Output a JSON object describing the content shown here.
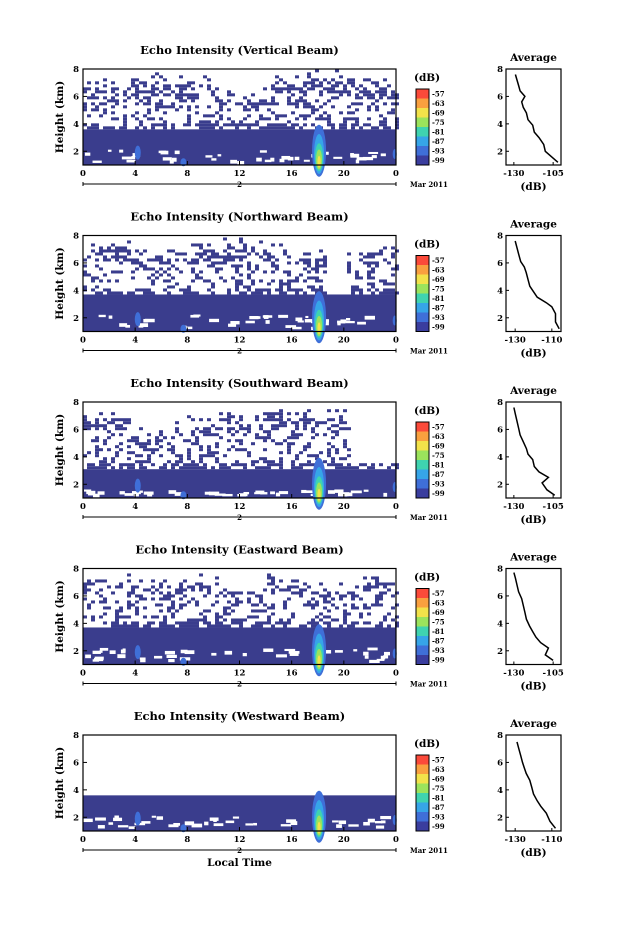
{
  "chart_data": [
    {
      "type": "heatmap",
      "title": "Echo Intensity (Vertical Beam)",
      "ylabel": "Height (km)",
      "ylim": [
        1,
        8
      ],
      "xlim": [
        0,
        24
      ],
      "x_ticks": [
        "0",
        "4",
        "8",
        "12",
        "16",
        "20",
        "0"
      ],
      "y_ticks": [
        "2",
        "4",
        "6",
        "8"
      ],
      "date_ticks": [
        "2",
        "Mar 2011"
      ],
      "colorbar": {
        "unit": "(dB)",
        "levels": [
          "-57",
          "-63",
          "-69",
          "-75",
          "-81",
          "-87",
          "-93",
          "-99"
        ]
      },
      "profile": {
        "title": "Average",
        "xlabel": "(dB)",
        "x_ticks": [
          "-130",
          "-105"
        ],
        "y_ticks": [
          "2",
          "4",
          "6",
          "8"
        ],
        "xlim": [
          -135,
          -100
        ],
        "ylim": [
          1,
          8
        ],
        "points": [
          [
            -102,
            1.2
          ],
          [
            -106,
            1.6
          ],
          [
            -110,
            2.0
          ],
          [
            -111,
            2.5
          ],
          [
            -114,
            3.0
          ],
          [
            -117,
            3.4
          ],
          [
            -118,
            3.9
          ],
          [
            -121,
            4.3
          ],
          [
            -122,
            4.8
          ],
          [
            -124,
            5.2
          ],
          [
            -125,
            5.6
          ],
          [
            -123,
            6.0
          ],
          [
            -126,
            6.4
          ],
          [
            -127,
            6.8
          ],
          [
            -128,
            7.2
          ],
          [
            -129,
            7.6
          ]
        ]
      },
      "structure": {
        "solid_top_km": 3.6,
        "noise_tops_km": [
          6.8,
          7.2,
          7.0,
          6.0,
          7.3,
          7.4,
          6.9
        ],
        "notch": null
      }
    },
    {
      "type": "heatmap",
      "title": "Echo Intensity (Northward Beam)",
      "ylabel": "Height (km)",
      "ylim": [
        1,
        8
      ],
      "xlim": [
        0,
        24
      ],
      "x_ticks": [
        "0",
        "4",
        "8",
        "12",
        "16",
        "20",
        "0"
      ],
      "y_ticks": [
        "2",
        "4",
        "6",
        "8"
      ],
      "date_ticks": [
        "2",
        "Mar 2011"
      ],
      "colorbar": {
        "unit": "(dB)",
        "levels": [
          "-57",
          "-63",
          "-69",
          "-75",
          "-81",
          "-87",
          "-93",
          "-99"
        ]
      },
      "profile": {
        "title": "Average",
        "xlabel": "(dB)",
        "x_ticks": [
          "-130",
          "-110"
        ],
        "y_ticks": [
          "2",
          "4",
          "6",
          "8"
        ],
        "xlim": [
          -135,
          -105
        ],
        "ylim": [
          1,
          8
        ],
        "points": [
          [
            -106,
            1.2
          ],
          [
            -108,
            1.7
          ],
          [
            -108,
            2.3
          ],
          [
            -110,
            2.8
          ],
          [
            -113,
            3.1
          ],
          [
            -118,
            3.5
          ],
          [
            -120,
            3.9
          ],
          [
            -122,
            4.3
          ],
          [
            -123,
            4.8
          ],
          [
            -124,
            5.3
          ],
          [
            -125,
            5.7
          ],
          [
            -127,
            6.1
          ],
          [
            -128,
            6.6
          ],
          [
            -129,
            7.1
          ],
          [
            -130,
            7.6
          ]
        ]
      },
      "structure": {
        "solid_top_km": 3.7,
        "noise_tops_km": [
          7.2,
          6.5,
          6.9,
          7.4,
          7.0,
          6.4,
          6.8
        ],
        "notch": [
          18.5,
          20.0,
          2.6
        ]
      }
    },
    {
      "type": "heatmap",
      "title": "Echo Intensity (Southward Beam)",
      "ylabel": "Height (km)",
      "ylim": [
        1,
        8
      ],
      "xlim": [
        0,
        24
      ],
      "x_ticks": [
        "0",
        "4",
        "8",
        "12",
        "16",
        "20",
        "0"
      ],
      "y_ticks": [
        "2",
        "4",
        "6",
        "8"
      ],
      "date_ticks": [
        "2",
        "Mar 2011"
      ],
      "colorbar": {
        "unit": "(dB)",
        "levels": [
          "-57",
          "-63",
          "-69",
          "-75",
          "-81",
          "-87",
          "-93",
          "-99"
        ]
      },
      "profile": {
        "title": "Average",
        "xlabel": "(dB)",
        "x_ticks": [
          "-130",
          "-105"
        ],
        "y_ticks": [
          "2",
          "4",
          "6",
          "8"
        ],
        "xlim": [
          -135,
          -100
        ],
        "ylim": [
          1,
          8
        ],
        "points": [
          [
            -104,
            1.2
          ],
          [
            -109,
            1.6
          ],
          [
            -112,
            2.1
          ],
          [
            -108,
            2.5
          ],
          [
            -114,
            2.9
          ],
          [
            -117,
            3.3
          ],
          [
            -118,
            3.8
          ],
          [
            -121,
            4.2
          ],
          [
            -122,
            4.6
          ],
          [
            -124,
            5.1
          ],
          [
            -126,
            5.6
          ],
          [
            -127,
            6.1
          ],
          [
            -128,
            6.6
          ],
          [
            -129,
            7.1
          ],
          [
            -130,
            7.6
          ]
        ]
      },
      "structure": {
        "solid_top_km": 3.1,
        "noise_tops_km": [
          7.0,
          5.6,
          6.6,
          7.1,
          7.3,
          7.0,
          6.2
        ],
        "notch": [
          20.5,
          24.0,
          3.6
        ]
      }
    },
    {
      "type": "heatmap",
      "title": "Echo Intensity (Eastward Beam)",
      "ylabel": "Height (km)",
      "ylim": [
        1,
        8
      ],
      "xlim": [
        0,
        24
      ],
      "x_ticks": [
        "0",
        "4",
        "8",
        "12",
        "16",
        "20",
        "0"
      ],
      "y_ticks": [
        "2",
        "4",
        "6",
        "8"
      ],
      "date_ticks": [
        "2",
        "Mar 2011"
      ],
      "colorbar": {
        "unit": "(dB)",
        "levels": [
          "-57",
          "-63",
          "-69",
          "-75",
          "-81",
          "-87",
          "-93",
          "-99"
        ]
      },
      "profile": {
        "title": "Average",
        "xlabel": "(dB)",
        "x_ticks": [
          "-130",
          "-105"
        ],
        "y_ticks": [
          "2",
          "4",
          "6",
          "8"
        ],
        "xlim": [
          -135,
          -100
        ],
        "ylim": [
          1,
          8
        ],
        "points": [
          [
            -105,
            1.3
          ],
          [
            -110,
            1.7
          ],
          [
            -108,
            2.2
          ],
          [
            -113,
            2.6
          ],
          [
            -116,
            3.0
          ],
          [
            -118,
            3.4
          ],
          [
            -120,
            3.8
          ],
          [
            -122,
            4.3
          ],
          [
            -123,
            4.8
          ],
          [
            -124,
            5.3
          ],
          [
            -125,
            5.8
          ],
          [
            -127,
            6.3
          ],
          [
            -128,
            6.8
          ],
          [
            -129,
            7.3
          ],
          [
            -130,
            7.7
          ]
        ]
      },
      "structure": {
        "solid_top_km": 3.7,
        "noise_tops_km": [
          7.2,
          6.8,
          7.1,
          6.5,
          7.3,
          6.4,
          7.0
        ],
        "notch": null
      }
    },
    {
      "type": "heatmap",
      "title": "Echo Intensity (Westward Beam)",
      "ylabel": "Height (km)",
      "xlabel": "Local Time",
      "ylim": [
        1,
        8
      ],
      "xlim": [
        0,
        24
      ],
      "x_ticks": [
        "0",
        "4",
        "8",
        "12",
        "16",
        "20",
        "0"
      ],
      "y_ticks": [
        "2",
        "4",
        "6",
        "8"
      ],
      "date_ticks": [
        "2",
        "Mar 2011"
      ],
      "colorbar": {
        "unit": "(dB)",
        "levels": [
          "-57",
          "-63",
          "-69",
          "-75",
          "-81",
          "-87",
          "-93",
          "-99"
        ]
      },
      "profile": {
        "title": "Average",
        "xlabel": "(dB)",
        "x_ticks": [
          "-130",
          "-110"
        ],
        "y_ticks": [
          "2",
          "4",
          "6",
          "8"
        ],
        "xlim": [
          -135,
          -105
        ],
        "ylim": [
          1,
          8
        ],
        "points": [
          [
            -108,
            1.2
          ],
          [
            -111,
            1.7
          ],
          [
            -113,
            2.3
          ],
          [
            -116,
            2.8
          ],
          [
            -118,
            3.2
          ],
          [
            -120,
            3.7
          ],
          [
            -121,
            4.2
          ],
          [
            -122,
            4.7
          ],
          [
            -124,
            5.2
          ],
          [
            -125,
            5.6
          ],
          [
            -126,
            6.0
          ],
          [
            -127,
            6.5
          ],
          [
            -128,
            7.0
          ],
          [
            -129,
            7.5
          ]
        ]
      },
      "structure": {
        "solid_top_km": 3.6,
        "noise_tops_km": [
          7.3,
          5.8,
          6.4,
          7.0,
          6.9,
          7.2,
          6.6
        ],
        "notch": [
          0.0,
          24.0,
          0
        ]
      }
    }
  ]
}
